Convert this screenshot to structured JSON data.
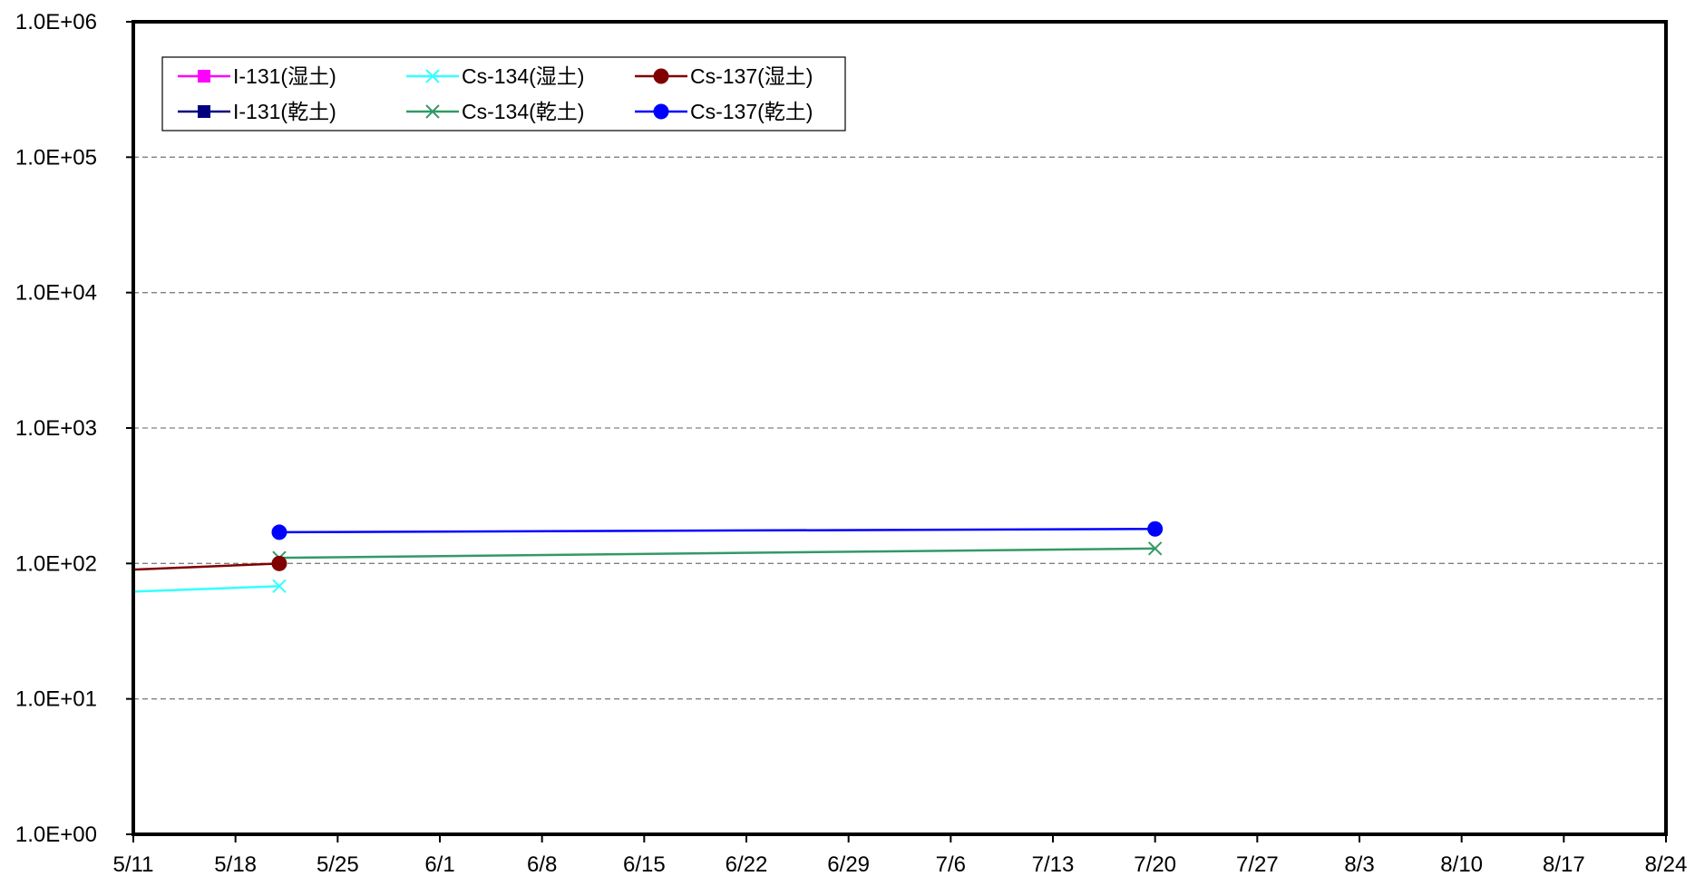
{
  "chart_data": {
    "type": "line",
    "y_scale": "log",
    "ylim": [
      1,
      1000000
    ],
    "y_ticks": [
      {
        "value": 1,
        "label": "1.0E+00"
      },
      {
        "value": 10,
        "label": "1.0E+01"
      },
      {
        "value": 100,
        "label": "1.0E+02"
      },
      {
        "value": 1000,
        "label": "1.0E+03"
      },
      {
        "value": 10000,
        "label": "1.0E+04"
      },
      {
        "value": 100000,
        "label": "1.0E+05"
      },
      {
        "value": 1000000,
        "label": "1.0E+06"
      }
    ],
    "xlim": [
      "5/11",
      "8/24"
    ],
    "x_ticks": [
      "5/11",
      "5/18",
      "5/25",
      "6/1",
      "6/8",
      "6/15",
      "6/22",
      "6/29",
      "7/6",
      "7/13",
      "7/20",
      "7/27",
      "8/3",
      "8/10",
      "8/17",
      "8/24"
    ],
    "grid": "horizontal dashed",
    "legend_position": "top-left",
    "series": [
      {
        "name": "I-131(湿土)",
        "color": "#ff00ff",
        "marker": "square",
        "points": []
      },
      {
        "name": "I-131(乾土)",
        "color": "#000080",
        "marker": "square",
        "points": []
      },
      {
        "name": "Cs-134(湿土)",
        "color": "#33ffff",
        "marker": "x",
        "points": [
          {
            "x": "5/11",
            "y": 62,
            "marker": false
          },
          {
            "x": "5/21",
            "y": 68
          }
        ]
      },
      {
        "name": "Cs-134(乾土)",
        "color": "#339966",
        "marker": "x",
        "points": [
          {
            "x": "5/21",
            "y": 110
          },
          {
            "x": "7/20",
            "y": 129
          }
        ]
      },
      {
        "name": "Cs-137(湿土)",
        "color": "#800000",
        "marker": "circle",
        "points": [
          {
            "x": "5/11",
            "y": 90,
            "marker": false
          },
          {
            "x": "5/21",
            "y": 100
          }
        ]
      },
      {
        "name": "Cs-137(乾土)",
        "color": "#0000ff",
        "marker": "circle",
        "points": [
          {
            "x": "5/21",
            "y": 170
          },
          {
            "x": "7/20",
            "y": 180
          }
        ]
      }
    ]
  }
}
